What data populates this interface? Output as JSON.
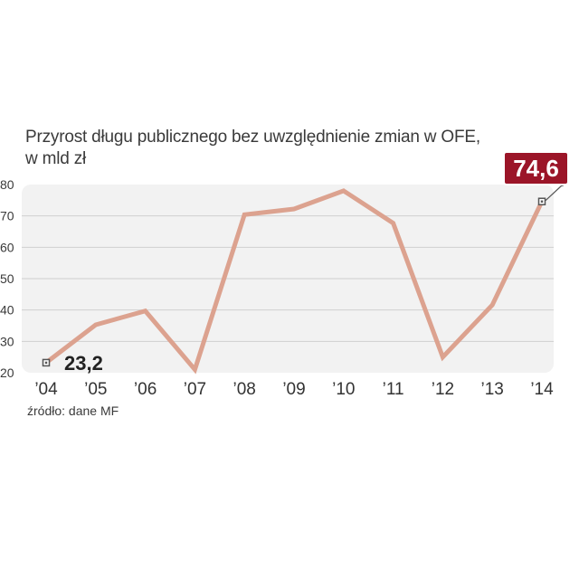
{
  "chart_data": {
    "type": "line",
    "title": "Przyrost długu publicznego bez uwzględnienie zmian w OFE,",
    "subtitle": "w mld zł",
    "source": "źródło: dane MF",
    "categories": [
      "’04",
      "’05",
      "’06",
      "’07",
      "’08",
      "’09",
      "’10",
      "’11",
      "’12",
      "’13",
      "’14"
    ],
    "values": [
      23.2,
      35.3,
      39.7,
      21.0,
      70.4,
      72.2,
      78.0,
      67.7,
      25.0,
      41.6,
      74.6
    ],
    "yticks": [
      "20",
      "30",
      "40",
      "50",
      "60",
      "70",
      "80"
    ],
    "ylim": [
      20,
      80
    ],
    "annotations": {
      "first": "23,2",
      "last": "74,6"
    },
    "colors": {
      "line": "#dca28f",
      "grid": "#cfcfcf",
      "plot_bg": "#f2f2f2",
      "last_badge": "#9b1528",
      "marker_fill": "#ffffff",
      "marker_stroke": "#555555"
    }
  }
}
